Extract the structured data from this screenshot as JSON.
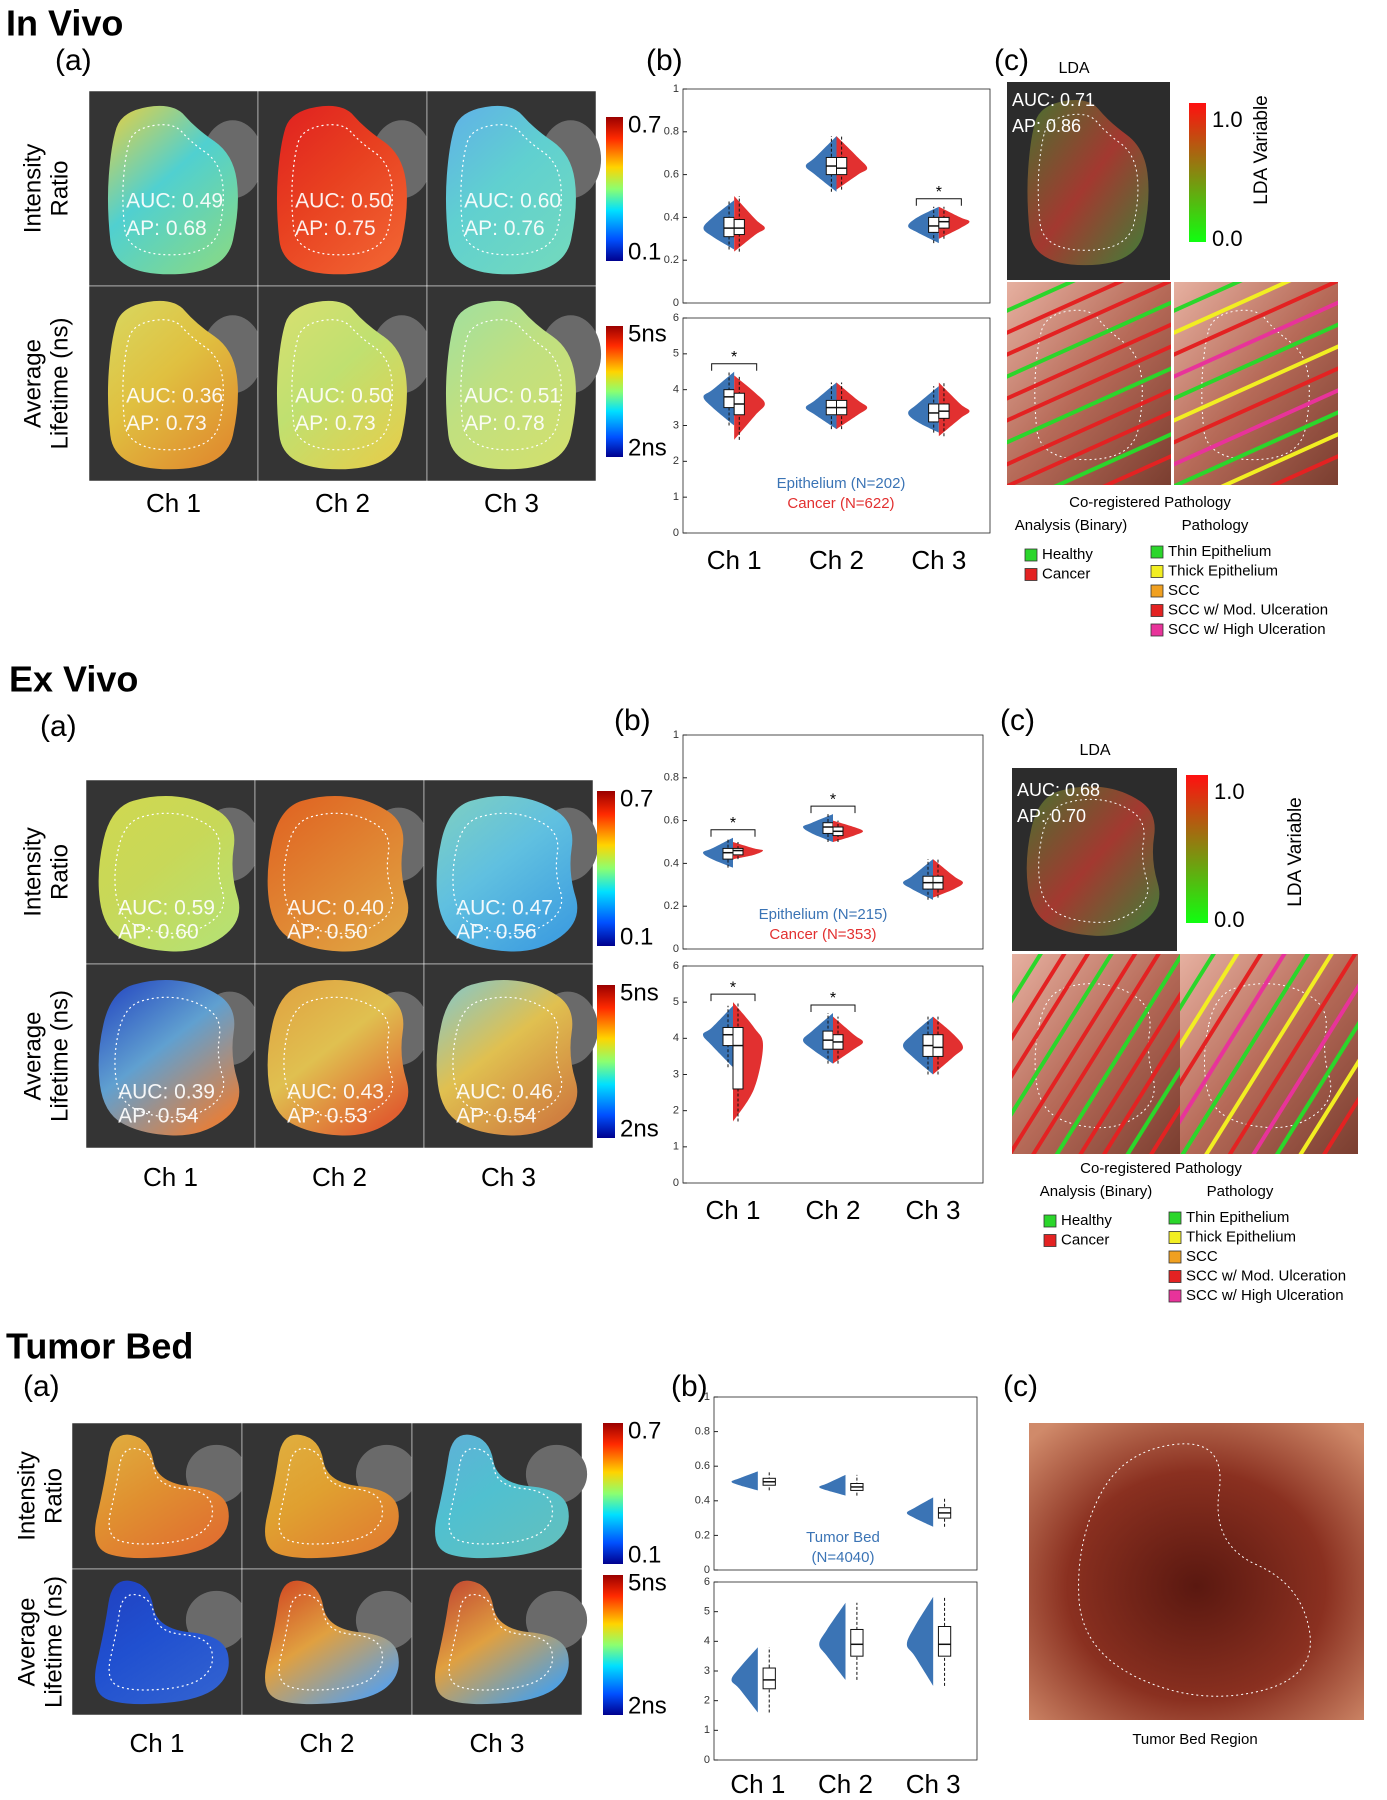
{
  "chart_data": [
    {
      "type": "violin",
      "categories": [
        null,
        null,
        null
      ],
      "ylim": [
        0,
        1
      ],
      "yticks": [
        0,
        0.2,
        0.4,
        0.6,
        0.8,
        1
      ],
      "series": [
        {
          "color": "#3b74b5",
          "values": [
            {
              "min": 0.25,
              "q1": 0.31,
              "median": 0.35,
              "q3": 0.4,
              "max": 0.48
            },
            {
              "min": 0.52,
              "q1": 0.6,
              "median": 0.64,
              "q3": 0.68,
              "max": 0.78
            },
            {
              "min": 0.28,
              "q1": 0.33,
              "median": 0.36,
              "q3": 0.4,
              "max": 0.45
            }
          ]
        },
        {
          "color": "#e23030",
          "values": [
            {
              "min": 0.24,
              "q1": 0.32,
              "median": 0.35,
              "q3": 0.39,
              "max": 0.5
            },
            {
              "min": 0.53,
              "q1": 0.6,
              "median": 0.63,
              "q3": 0.68,
              "max": 0.78
            },
            {
              "min": 0.3,
              "q1": 0.35,
              "median": 0.38,
              "q3": 0.4,
              "max": 0.45
            }
          ]
        }
      ],
      "stars": [
        null,
        null,
        "*"
      ]
    },
    {
      "type": "violin",
      "categories": [
        "Ch 1",
        "Ch 2",
        "Ch 3"
      ],
      "ylim": [
        0,
        6
      ],
      "yticks": [
        0,
        1,
        2,
        3,
        4,
        5,
        6
      ],
      "series": [
        {
          "name": "Epithelium (N=202)",
          "color": "#3b74b5",
          "values": [
            {
              "min": 3.0,
              "q1": 3.5,
              "median": 3.8,
              "q3": 4.0,
              "max": 4.5
            },
            {
              "min": 2.9,
              "q1": 3.3,
              "median": 3.5,
              "q3": 3.7,
              "max": 4.2
            },
            {
              "min": 2.8,
              "q1": 3.1,
              "median": 3.35,
              "q3": 3.6,
              "max": 4.1
            }
          ]
        },
        {
          "name": "Cancer (N=622)",
          "color": "#e23030",
          "values": [
            {
              "min": 2.6,
              "q1": 3.3,
              "median": 3.6,
              "q3": 3.9,
              "max": 4.4
            },
            {
              "min": 2.9,
              "q1": 3.3,
              "median": 3.5,
              "q3": 3.7,
              "max": 4.2
            },
            {
              "min": 2.7,
              "q1": 3.2,
              "median": 3.4,
              "q3": 3.6,
              "max": 4.2
            }
          ]
        }
      ],
      "stars": [
        "*",
        null,
        null
      ]
    },
    {
      "type": "violin",
      "categories": [
        null,
        null,
        null
      ],
      "ylim": [
        0,
        1
      ],
      "yticks": [
        0,
        0.2,
        0.4,
        0.6,
        0.8,
        1
      ],
      "series": [
        {
          "name": "Epithelium (N=215)",
          "color": "#3b74b5",
          "values": [
            {
              "min": 0.38,
              "q1": 0.42,
              "median": 0.45,
              "q3": 0.47,
              "max": 0.52
            },
            {
              "min": 0.5,
              "q1": 0.54,
              "median": 0.57,
              "q3": 0.59,
              "max": 0.63
            },
            {
              "min": 0.23,
              "q1": 0.28,
              "median": 0.31,
              "q3": 0.34,
              "max": 0.42
            }
          ]
        },
        {
          "name": "Cancer (N=353)",
          "color": "#e23030",
          "values": [
            {
              "min": 0.42,
              "q1": 0.44,
              "median": 0.46,
              "q3": 0.47,
              "max": 0.5
            },
            {
              "min": 0.5,
              "q1": 0.53,
              "median": 0.55,
              "q3": 0.57,
              "max": 0.6
            },
            {
              "min": 0.24,
              "q1": 0.28,
              "median": 0.31,
              "q3": 0.34,
              "max": 0.42
            }
          ]
        }
      ],
      "stars": [
        "*",
        "*",
        null
      ]
    },
    {
      "type": "violin",
      "categories": [
        "Ch 1",
        "Ch 2",
        "Ch 3"
      ],
      "ylim": [
        0,
        6
      ],
      "yticks": [
        0,
        1,
        2,
        3,
        4,
        5,
        6
      ],
      "series": [
        {
          "color": "#3b74b5",
          "values": [
            {
              "min": 3.2,
              "q1": 3.8,
              "median": 4.1,
              "q3": 4.3,
              "max": 4.9
            },
            {
              "min": 3.3,
              "q1": 3.7,
              "median": 3.95,
              "q3": 4.2,
              "max": 4.7
            },
            {
              "min": 3.0,
              "q1": 3.5,
              "median": 3.8,
              "q3": 4.1,
              "max": 4.6
            }
          ]
        },
        {
          "color": "#e23030",
          "values": [
            {
              "min": 1.7,
              "q1": 2.6,
              "median": 3.8,
              "q3": 4.3,
              "max": 5.0
            },
            {
              "min": 3.3,
              "q1": 3.7,
              "median": 3.9,
              "q3": 4.1,
              "max": 4.6
            },
            {
              "min": 3.0,
              "q1": 3.5,
              "median": 3.75,
              "q3": 4.1,
              "max": 4.6
            }
          ]
        }
      ],
      "stars": [
        "*",
        "*",
        null
      ]
    },
    {
      "type": "violin",
      "categories": [
        null,
        null,
        null
      ],
      "ylim": [
        0,
        1
      ],
      "yticks": [
        0,
        0.2,
        0.4,
        0.6,
        0.8,
        1
      ],
      "series": [
        {
          "name": "Tumor Bed (N=4040)",
          "color": "#3b74b5",
          "values": [
            {
              "min": 0.46,
              "q1": 0.49,
              "median": 0.51,
              "q3": 0.53,
              "max": 0.57
            },
            {
              "min": 0.43,
              "q1": 0.46,
              "median": 0.48,
              "q3": 0.5,
              "max": 0.55
            },
            {
              "min": 0.25,
              "q1": 0.3,
              "median": 0.33,
              "q3": 0.36,
              "max": 0.42
            }
          ]
        }
      ]
    },
    {
      "type": "violin",
      "categories": [
        "Ch 1",
        "Ch 2",
        "Ch 3"
      ],
      "ylim": [
        0,
        6
      ],
      "yticks": [
        0,
        1,
        2,
        3,
        4,
        5,
        6
      ],
      "series": [
        {
          "color": "#3b74b5",
          "values": [
            {
              "min": 1.6,
              "q1": 2.4,
              "median": 2.7,
              "q3": 3.1,
              "max": 3.8
            },
            {
              "min": 2.7,
              "q1": 3.5,
              "median": 3.9,
              "q3": 4.4,
              "max": 5.3
            },
            {
              "min": 2.5,
              "q1": 3.5,
              "median": 3.9,
              "q3": 4.5,
              "max": 5.5
            }
          ]
        }
      ]
    }
  ],
  "sections": [
    {
      "title": "In Vivo",
      "panel_labels": [
        "(a)",
        "(b)",
        "(c)"
      ],
      "rows": [
        {
          "label": [
            "Intensity",
            "Ratio"
          ],
          "colorbar": [
            "0.7",
            "0.1"
          ],
          "metrics": [
            [
              "AUC: 0.49",
              "AP: 0.68"
            ],
            [
              "AUC: 0.50",
              "AP: 0.75"
            ],
            [
              "AUC: 0.60",
              "AP: 0.76"
            ]
          ]
        },
        {
          "label": [
            "Average",
            "Lifetime (ns)"
          ],
          "colorbar": [
            "5ns",
            "2ns"
          ],
          "metrics": [
            [
              "AUC: 0.36",
              "AP: 0.73"
            ],
            [
              "AUC: 0.50",
              "AP: 0.73"
            ],
            [
              "AUC: 0.51",
              "AP: 0.78"
            ]
          ]
        }
      ],
      "channels": [
        "Ch 1",
        "Ch 2",
        "Ch 3"
      ],
      "lda": {
        "title": "LDA",
        "metrics": [
          "AUC: 0.71",
          "AP: 0.86"
        ],
        "colorbar": [
          "1.0",
          "0.0"
        ],
        "axis_label": "LDA Variable"
      },
      "pathology": {
        "caption": "Co-registered Pathology",
        "binary_title": "Analysis (Binary)",
        "classes_title": "Pathology",
        "binary": [
          {
            "label": "Healthy",
            "color": "#2bd62b"
          },
          {
            "label": "Cancer",
            "color": "#e32222"
          }
        ],
        "classes": [
          {
            "label": "Thin Epithelium",
            "color": "#2bd62b"
          },
          {
            "label": "Thick Epithelium",
            "color": "#f2ee22"
          },
          {
            "label": "SCC",
            "color": "#f0a020"
          },
          {
            "label": "SCC w/ Mod. Ulceration",
            "color": "#e32222"
          },
          {
            "label": "SCC w/ High Ulceration",
            "color": "#e8339a"
          }
        ]
      }
    },
    {
      "title": "Ex Vivo",
      "panel_labels": [
        "(a)",
        "(b)",
        "(c)"
      ],
      "rows": [
        {
          "label": [
            "Intensity",
            "Ratio"
          ],
          "colorbar": [
            "0.7",
            "0.1"
          ],
          "metrics": [
            [
              "AUC: 0.59",
              "AP: 0.60"
            ],
            [
              "AUC: 0.40",
              "AP: 0.50"
            ],
            [
              "AUC: 0.47",
              "AP: 0.56"
            ]
          ]
        },
        {
          "label": [
            "Average",
            "Lifetime (ns)"
          ],
          "colorbar": [
            "5ns",
            "2ns"
          ],
          "metrics": [
            [
              "AUC: 0.39",
              "AP: 0.54"
            ],
            [
              "AUC: 0.43",
              "AP: 0.53"
            ],
            [
              "AUC: 0.46",
              "AP: 0.54"
            ]
          ]
        }
      ],
      "channels": [
        "Ch 1",
        "Ch 2",
        "Ch 3"
      ],
      "lda": {
        "title": "LDA",
        "metrics": [
          "AUC: 0.68",
          "AP: 0.70"
        ],
        "colorbar": [
          "1.0",
          "0.0"
        ],
        "axis_label": "LDA Variable"
      },
      "pathology": {
        "caption": "Co-registered Pathology",
        "binary_title": "Analysis (Binary)",
        "classes_title": "Pathology",
        "binary": [
          {
            "label": "Healthy",
            "color": "#2bd62b"
          },
          {
            "label": "Cancer",
            "color": "#e32222"
          }
        ],
        "classes": [
          {
            "label": "Thin Epithelium",
            "color": "#2bd62b"
          },
          {
            "label": "Thick Epithelium",
            "color": "#f2ee22"
          },
          {
            "label": "SCC",
            "color": "#f0a020"
          },
          {
            "label": "SCC w/ Mod. Ulceration",
            "color": "#e32222"
          },
          {
            "label": "SCC w/ High Ulceration",
            "color": "#e8339a"
          }
        ]
      }
    },
    {
      "title": "Tumor Bed",
      "panel_labels": [
        "(a)",
        "(b)",
        "(c)"
      ],
      "rows": [
        {
          "label": [
            "Intensity",
            "Ratio"
          ],
          "colorbar": [
            "0.7",
            "0.1"
          ]
        },
        {
          "label": [
            "Average",
            "Lifetime (ns)"
          ],
          "colorbar": [
            "5ns",
            "2ns"
          ]
        }
      ],
      "channels": [
        "Ch 1",
        "Ch 2",
        "Ch 3"
      ],
      "photo_caption": "Tumor Bed Region"
    }
  ]
}
